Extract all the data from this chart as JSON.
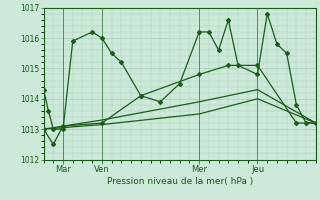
{
  "title": "Pression niveau de la mer( hPa )",
  "ylim": [
    1012,
    1017
  ],
  "yticks": [
    1012,
    1013,
    1014,
    1015,
    1016,
    1017
  ],
  "bg_color": "#cce8d8",
  "plot_bg_color": "#cce8d8",
  "grid_color": "#aaccbb",
  "line_color": "#1a5c1a",
  "x_tick_labels": [
    "Mar",
    "Ven",
    "Mer",
    "Jeu"
  ],
  "x_tick_positions": [
    2,
    6,
    16,
    22
  ],
  "xlim": [
    0,
    28
  ],
  "vline_positions": [
    2,
    6,
    16,
    22
  ],
  "line1_x": [
    0,
    0.5,
    1,
    2,
    3,
    5,
    6,
    7,
    8,
    10,
    12,
    14,
    16,
    17,
    18,
    19,
    20,
    22,
    23,
    24,
    25,
    26,
    27,
    28
  ],
  "line1_y": [
    1014.3,
    1013.6,
    1013.0,
    1013.0,
    1015.9,
    1016.2,
    1016.0,
    1015.5,
    1015.2,
    1014.1,
    1013.9,
    1014.5,
    1016.2,
    1016.2,
    1015.6,
    1016.6,
    1015.1,
    1014.8,
    1016.8,
    1015.8,
    1015.5,
    1013.8,
    1013.2,
    1013.2
  ],
  "line2_x": [
    0,
    1,
    2,
    6,
    10,
    16,
    19,
    22,
    26,
    28
  ],
  "line2_y": [
    1013.0,
    1012.5,
    1013.1,
    1013.2,
    1014.1,
    1014.8,
    1015.1,
    1015.1,
    1013.2,
    1013.2
  ],
  "line3_x": [
    0,
    2,
    6,
    16,
    22,
    28
  ],
  "line3_y": [
    1013.0,
    1013.05,
    1013.15,
    1013.5,
    1014.0,
    1013.2
  ],
  "line4_x": [
    0,
    2,
    6,
    16,
    22,
    28
  ],
  "line4_y": [
    1013.0,
    1013.1,
    1013.3,
    1013.9,
    1014.3,
    1013.2
  ]
}
